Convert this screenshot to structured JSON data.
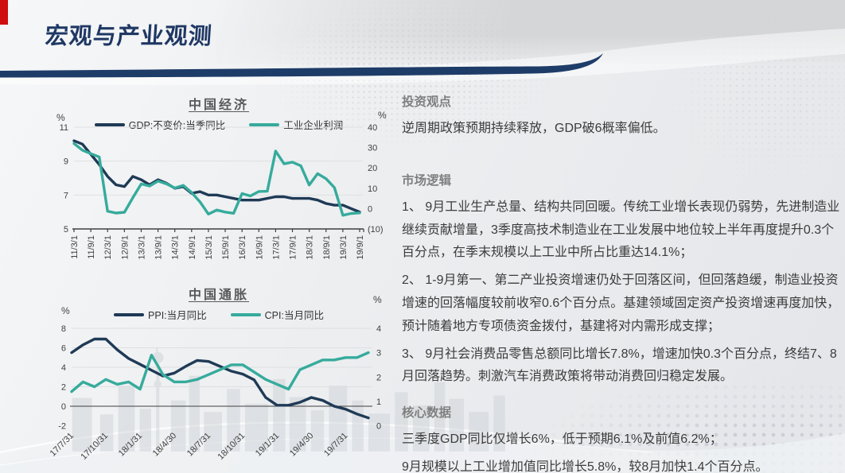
{
  "header": {
    "title": "宏观与产业观测"
  },
  "colors": {
    "navy_line": "#1f3a56",
    "teal_line": "#36ab9c",
    "title_navy": "#1f3864",
    "divider_navy": "#1e3c68",
    "red_accent": "#cf0f0f",
    "neg_tick_red": "#fb2020",
    "heading_gray": "#7f7f7f",
    "body_text": "#3c3c3c"
  },
  "chart_data": [
    {
      "type": "line",
      "title": "中国经济",
      "x_labels": [
        "11/3/1",
        "11/9/1",
        "12/3/1",
        "12/9/1",
        "13/3/1",
        "13/9/1",
        "14/3/1",
        "14/9/1",
        "15/3/1",
        "15/9/1",
        "16/3/1",
        "16/9/1",
        "17/3/1",
        "17/9/1",
        "18/3/1",
        "18/9/1",
        "19/3/1",
        "19/9/1"
      ],
      "points_per_label": 2,
      "left_axis": {
        "label": "%",
        "min": 5,
        "max": 11,
        "ticks": [
          11,
          9,
          7,
          5
        ]
      },
      "right_axis": {
        "label": "%",
        "min": -10,
        "max": 40,
        "ticks": [
          {
            "label": "40"
          },
          {
            "label": "30"
          },
          {
            "label": "20"
          },
          {
            "label": "10"
          },
          {
            "label": "0"
          },
          {
            "label": "(10)",
            "color": "#fb2020"
          }
        ]
      },
      "series": [
        {
          "name": "GDP:不变价:当季同比",
          "axis": "left",
          "color": "#1f3a56",
          "values": [
            10.2,
            10.0,
            9.4,
            8.8,
            8.1,
            7.6,
            7.5,
            8.1,
            7.9,
            7.6,
            7.9,
            7.7,
            7.4,
            7.5,
            7.1,
            7.2,
            7.0,
            7.0,
            6.9,
            6.8,
            6.7,
            6.7,
            6.7,
            6.8,
            6.9,
            6.9,
            6.8,
            6.8,
            6.8,
            6.7,
            6.5,
            6.4,
            6.4,
            6.2,
            6.0
          ]
        },
        {
          "name": "工业企业利润",
          "axis": "right",
          "color": "#36ab9c",
          "values": [
            32.0,
            28.7,
            27.0,
            25.4,
            -1.3,
            -2.2,
            -1.8,
            5.3,
            12.1,
            11.1,
            13.5,
            12.2,
            10.1,
            11.4,
            7.9,
            3.3,
            -2.7,
            -0.7,
            -1.7,
            -2.3,
            7.4,
            6.2,
            8.4,
            8.5,
            28.3,
            22.0,
            22.8,
            21.0,
            11.6,
            17.2,
            14.7,
            10.3,
            -3.3,
            -2.4,
            -2.1
          ]
        }
      ]
    },
    {
      "type": "line",
      "title": "中国通胀",
      "x_labels": [
        "17/7/31",
        "17/10/31",
        "18/1/31",
        "18/4/30",
        "18/7/31",
        "18/10/31",
        "19/1/31",
        "19/4/30",
        "19/7/31"
      ],
      "points_per_label": 3,
      "left_axis": {
        "label": "%",
        "min": -2,
        "max": 8,
        "ticks": [
          8,
          6,
          4,
          2,
          0,
          -2
        ]
      },
      "right_axis": {
        "label": "%",
        "min": 0,
        "max": 4,
        "ticks": [
          {
            "label": "4"
          },
          {
            "label": "3"
          },
          {
            "label": "2"
          },
          {
            "label": "1"
          },
          {
            "label": "0"
          }
        ]
      },
      "series": [
        {
          "name": "PPI:当月同比",
          "axis": "left",
          "color": "#1f3a56",
          "values": [
            5.5,
            6.3,
            6.9,
            6.9,
            5.8,
            4.9,
            4.3,
            3.7,
            3.1,
            3.4,
            4.1,
            4.7,
            4.6,
            4.1,
            3.6,
            3.3,
            2.7,
            0.9,
            0.1,
            0.1,
            0.4,
            0.9,
            0.6,
            0.0,
            -0.3,
            -0.8,
            -1.2
          ]
        },
        {
          "name": "CPI:当月同比",
          "axis": "right",
          "color": "#36ab9c",
          "values": [
            1.4,
            1.8,
            1.6,
            1.9,
            1.7,
            1.8,
            1.5,
            2.9,
            2.1,
            1.8,
            1.8,
            1.9,
            2.1,
            2.3,
            2.5,
            2.5,
            2.2,
            1.9,
            1.7,
            1.5,
            2.3,
            2.5,
            2.7,
            2.7,
            2.8,
            2.8,
            3.0
          ]
        }
      ]
    }
  ],
  "panel": {
    "sections": [
      {
        "heading": "投资观点",
        "paragraphs": [
          "逆周期政策预期持续释放，GDP破6概率偏低。"
        ]
      },
      {
        "heading": "市场逻辑",
        "paragraphs": [
          "1、 9月工业生产总量、结构共同回暖。传统工业增长表现仍弱势，先进制造业继续贡献增量，3季度高技术制造业在工业发展中地位较上半年再度提升0.3个百分点，在季末规模以上工业中所占比重达14.1%；",
          "2、 1-9月第一、第二产业投资增速仍处于回落区间，但回落趋缓，制造业投资增速的回落幅度较前收窄0.6个百分点。基建领域固定资产投资增速再度加快，预计随着地方专项债资金拨付，基建将对内需形成支撑；",
          "3、 9月社会消费品零售总额同比增长7.8%，增速加快0.3个百分点，终结7、8月回落趋势。刺激汽车消费政策将带动消费回归稳定发展。"
        ]
      },
      {
        "heading": "核心数据",
        "paragraphs": [
          "三季度GDP同比仅增长6%，低于预期6.1%及前值6.2%；",
          "9月规模以上工业增加值同比增长5.8%，较8月加快1.4个百分点。"
        ]
      }
    ]
  }
}
